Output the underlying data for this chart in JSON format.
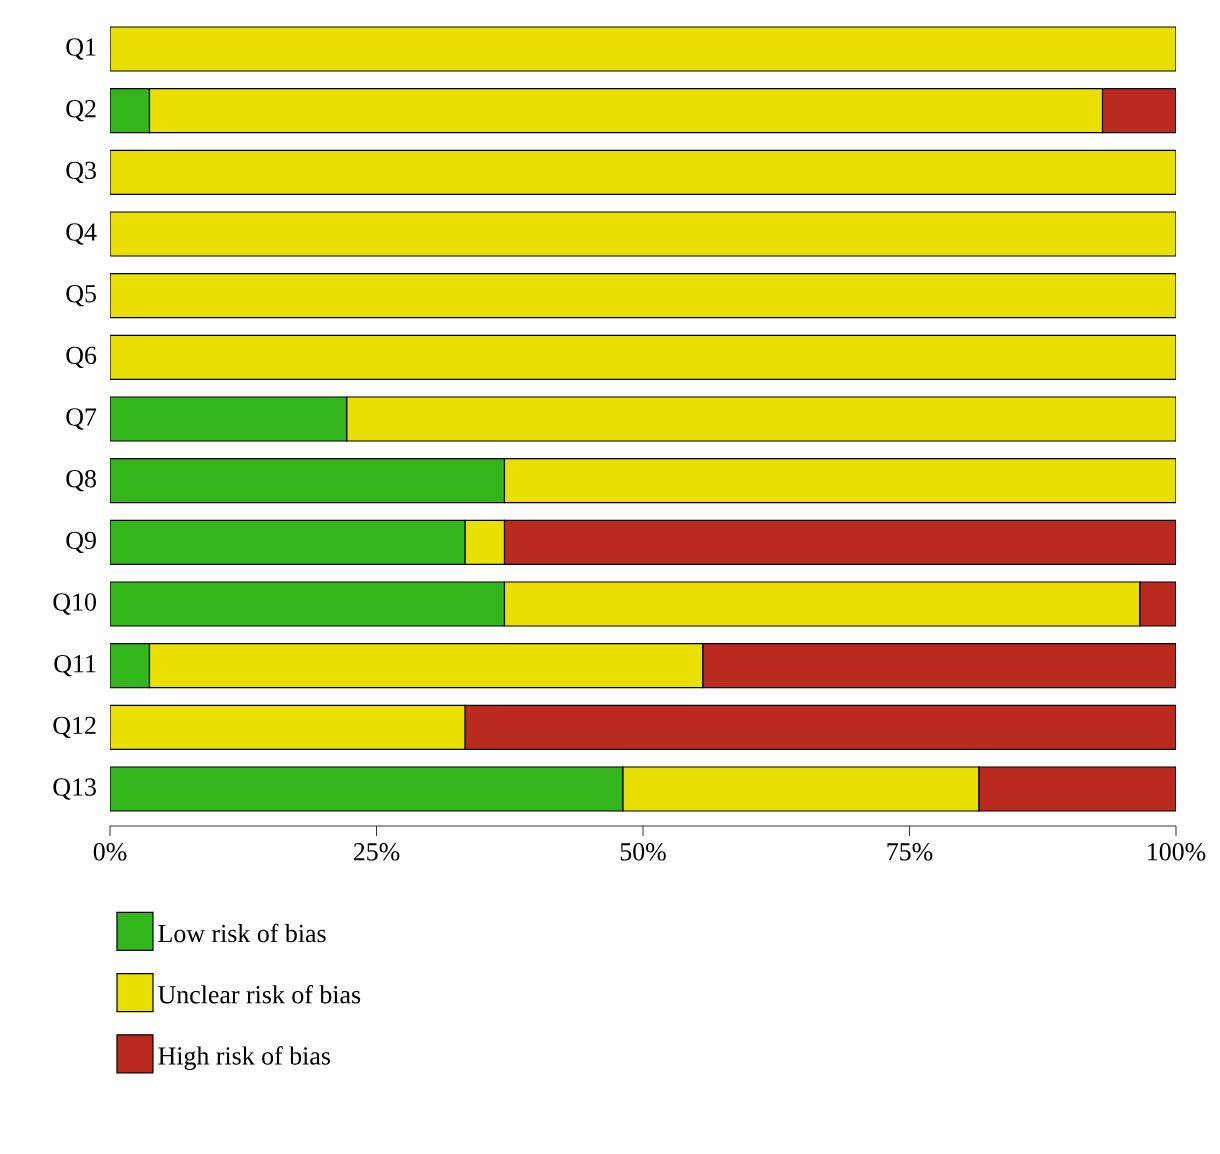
{
  "chart_data": {
    "type": "bar",
    "orientation": "horizontal",
    "stacked": true,
    "categories": [
      "Q1",
      "Q2",
      "Q3",
      "Q4",
      "Q5",
      "Q6",
      "Q7",
      "Q8",
      "Q9",
      "Q10",
      "Q11",
      "Q12",
      "Q13"
    ],
    "series": [
      {
        "name": "Low risk of bias",
        "color": "#33b51c",
        "values": [
          0,
          3.7,
          0,
          0,
          0,
          0,
          22.2,
          37.0,
          33.3,
          37.0,
          3.7,
          0,
          48.1
        ]
      },
      {
        "name": "Unclear risk of bias",
        "color": "#e9df00",
        "values": [
          100,
          89.4,
          100,
          100,
          100,
          100,
          77.8,
          63.0,
          3.7,
          59.6,
          51.9,
          33.3,
          33.4
        ]
      },
      {
        "name": "High risk of bias",
        "color": "#bb2a1f",
        "values": [
          0,
          6.9,
          0,
          0,
          0,
          0,
          0,
          0,
          63.0,
          3.4,
          44.4,
          66.7,
          18.5
        ]
      }
    ],
    "xlim": [
      0,
      100
    ],
    "xticks": [
      {
        "value": 0,
        "label": "0%"
      },
      {
        "value": 25,
        "label": "25%"
      },
      {
        "value": 50,
        "label": "50%"
      },
      {
        "value": 75,
        "label": "75%"
      },
      {
        "value": 100,
        "label": "100%"
      }
    ],
    "legend": "bottom"
  }
}
